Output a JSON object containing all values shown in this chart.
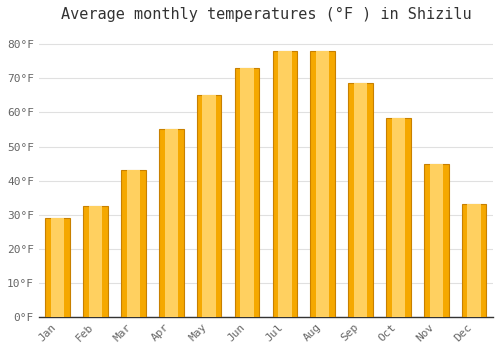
{
  "title": "Average monthly temperatures (°F ) in Shizilu",
  "months": [
    "Jan",
    "Feb",
    "Mar",
    "Apr",
    "May",
    "Jun",
    "Jul",
    "Aug",
    "Sep",
    "Oct",
    "Nov",
    "Dec"
  ],
  "values": [
    29,
    32.5,
    43,
    55,
    65,
    73,
    78,
    78,
    68.5,
    58.5,
    45,
    33
  ],
  "ylim": [
    0,
    85
  ],
  "yticks": [
    0,
    10,
    20,
    30,
    40,
    50,
    60,
    70,
    80
  ],
  "ytick_labels": [
    "0°F",
    "10°F",
    "20°F",
    "30°F",
    "40°F",
    "50°F",
    "60°F",
    "70°F",
    "80°F"
  ],
  "background_color": "#ffffff",
  "plot_background_color": "#ffffff",
  "bar_color_center": "#FFD060",
  "bar_color_edge": "#F5A800",
  "bar_outline_color": "#C88000",
  "title_fontsize": 11,
  "tick_fontsize": 8,
  "grid_color": "#e0e0e0",
  "font_family": "monospace"
}
